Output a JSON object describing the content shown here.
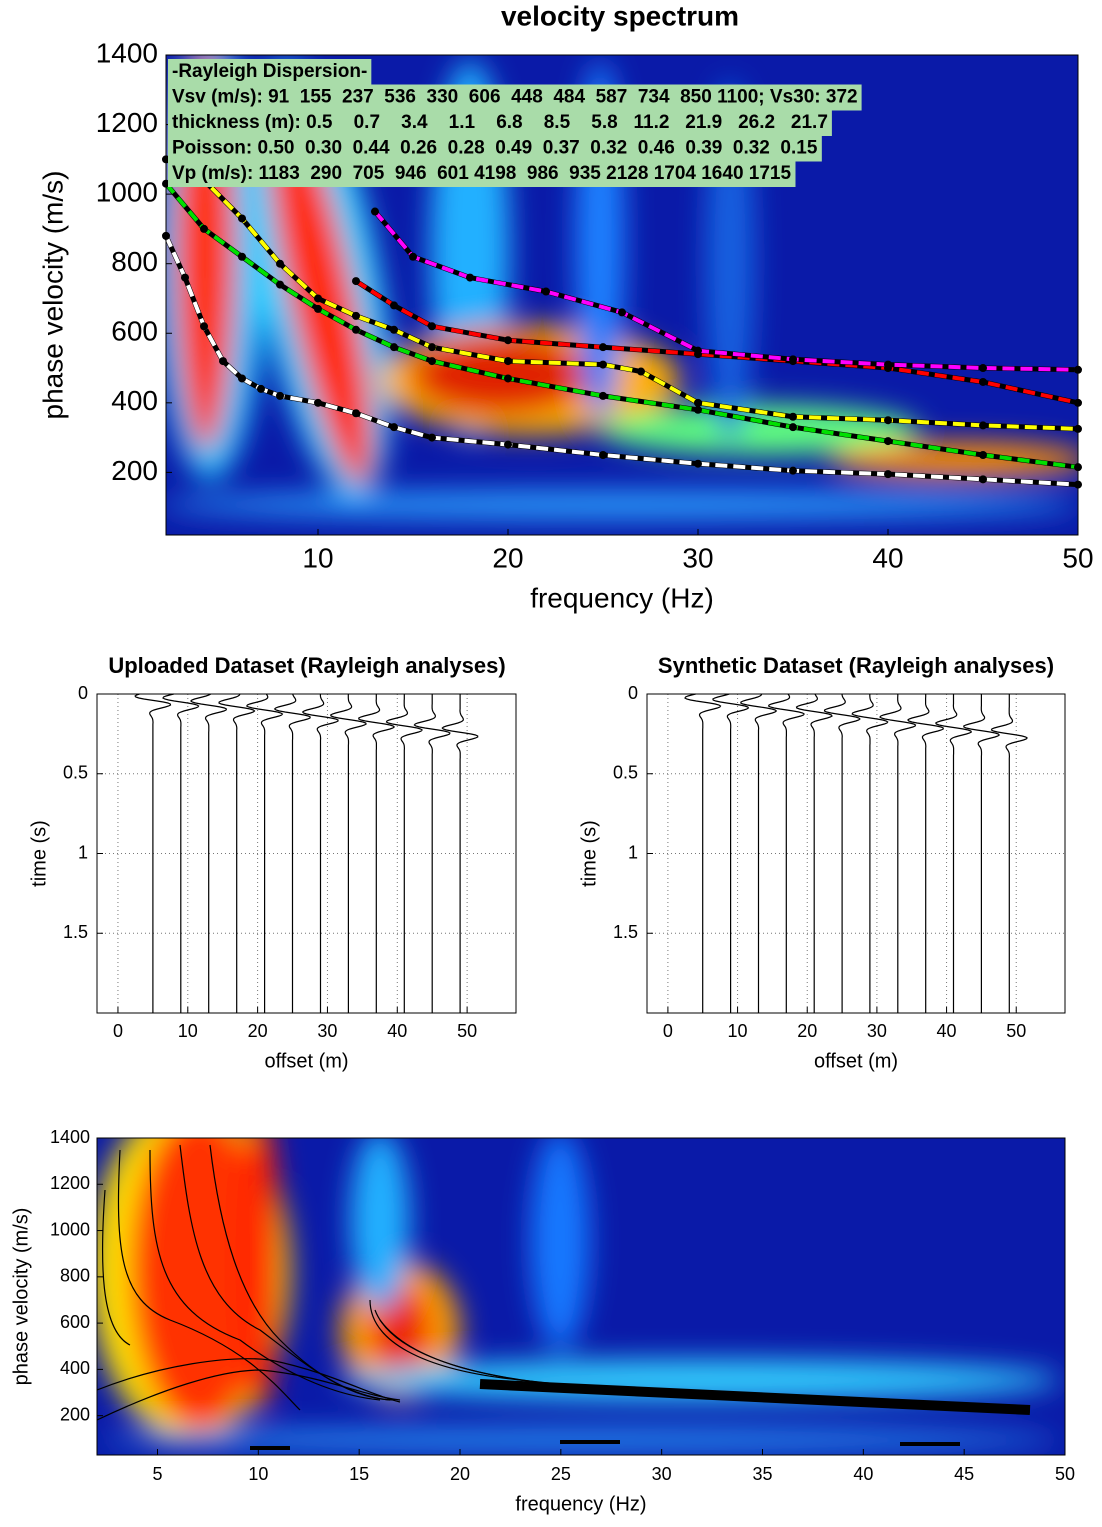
{
  "chart_data": [
    {
      "type": "line",
      "title": "velocity spectrum",
      "x_label": "frequency (Hz)",
      "y_label": "phase velocity (m/s)",
      "xlim": [
        2,
        50
      ],
      "ylim": [
        20,
        1400
      ],
      "xticks": [
        10,
        20,
        30,
        40,
        50
      ],
      "yticks": [
        200,
        400,
        600,
        800,
        1000,
        1200,
        1400
      ],
      "annotations": [
        "-Rayleigh Dispersion-",
        "Vsv (m/s): 91  155  237  536  330  606  448  484  587  734  850 1100; Vs30: 372",
        "thickness (m): 0.5    0.7    3.4    1.1    6.8    8.5    5.8   11.2   21.9   26.2   21.7",
        "Poisson: 0.50  0.30  0.44  0.26  0.28  0.49  0.37  0.32  0.46  0.39  0.32  0.15",
        "Vp (m/s): 1183  290  705  946  601 4198  986  935 2128 1704 1640 1715"
      ],
      "series": [
        {
          "color": "#ffffff",
          "x": [
            2,
            3,
            4,
            5,
            6,
            7,
            8,
            10,
            12,
            14,
            16,
            20,
            25,
            30,
            35,
            40,
            45,
            50
          ],
          "values": [
            880,
            760,
            620,
            520,
            470,
            440,
            420,
            400,
            370,
            330,
            300,
            280,
            250,
            225,
            205,
            195,
            180,
            165
          ]
        },
        {
          "color": "#00e000",
          "x": [
            2,
            4,
            6,
            8,
            10,
            12,
            14,
            16,
            20,
            25,
            30,
            35,
            40,
            45,
            50
          ],
          "values": [
            1030,
            900,
            820,
            740,
            670,
            610,
            560,
            520,
            470,
            420,
            380,
            330,
            290,
            250,
            215
          ]
        },
        {
          "color": "#ffff00",
          "x": [
            2,
            4,
            6,
            8,
            10,
            12,
            14,
            16,
            20,
            25,
            27,
            30,
            35,
            40,
            45,
            50
          ],
          "values": [
            1100,
            1040,
            930,
            800,
            700,
            650,
            610,
            560,
            520,
            510,
            490,
            400,
            360,
            350,
            335,
            325
          ]
        },
        {
          "color": "#ff0000",
          "x": [
            12,
            14,
            16,
            20,
            25,
            30,
            35,
            40,
            45,
            50
          ],
          "values": [
            750,
            680,
            620,
            580,
            560,
            540,
            520,
            500,
            460,
            400
          ]
        },
        {
          "color": "#ff00ff",
          "x": [
            13,
            15,
            18,
            22,
            26,
            30,
            35,
            40,
            45,
            50
          ],
          "values": [
            950,
            820,
            760,
            720,
            660,
            550,
            525,
            510,
            500,
            495
          ]
        }
      ]
    },
    {
      "type": "seismogram",
      "title": "Uploaded Dataset (Rayleigh analyses)",
      "x_label": "offset (m)",
      "y_label": "time (s)",
      "xlim": [
        -3,
        57
      ],
      "ylim": [
        0,
        2
      ],
      "xticks": [
        0,
        10,
        20,
        30,
        40,
        50
      ],
      "yticks": [
        0,
        0.5,
        1,
        1.5
      ],
      "grid": true,
      "x": [
        5,
        9,
        13,
        17,
        21,
        25,
        29,
        33,
        37,
        41,
        45,
        49
      ],
      "values": [
        0.04,
        0.05,
        0.07,
        0.08,
        0.1,
        0.12,
        0.14,
        0.16,
        0.18,
        0.2,
        0.22,
        0.24
      ]
    },
    {
      "type": "seismogram",
      "title": "Synthetic Dataset (Rayleigh analyses)",
      "x_label": "offset (m)",
      "y_label": "time (s)",
      "xlim": [
        -3,
        57
      ],
      "ylim": [
        0,
        2
      ],
      "xticks": [
        0,
        10,
        20,
        30,
        40,
        50
      ],
      "yticks": [
        0,
        0.5,
        1,
        1.5
      ],
      "grid": true,
      "x": [
        5,
        9,
        13,
        17,
        21,
        25,
        29,
        33,
        37,
        41,
        45,
        49
      ],
      "values": [
        0.05,
        0.06,
        0.08,
        0.1,
        0.11,
        0.13,
        0.15,
        0.17,
        0.19,
        0.21,
        0.23,
        0.25
      ]
    },
    {
      "type": "contour",
      "x_label": "frequency (Hz)",
      "y_label": "phase velocity (m/s)",
      "xlim": [
        2,
        50
      ],
      "ylim": [
        30,
        1400
      ],
      "xticks": [
        5,
        10,
        15,
        20,
        25,
        30,
        35,
        40,
        45,
        50
      ],
      "yticks": [
        200,
        400,
        600,
        800,
        1000,
        1200,
        1400
      ]
    }
  ]
}
